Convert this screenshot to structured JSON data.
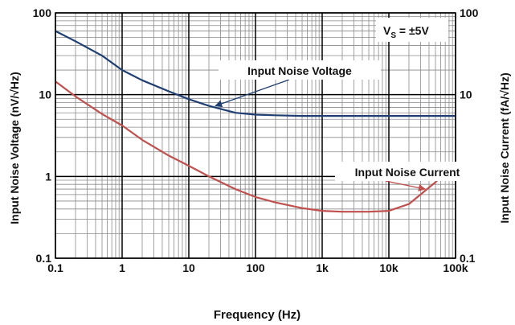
{
  "chart_data": {
    "type": "line",
    "xlabel": "Frequency (Hz)",
    "ylabel_left": "Input Noise Voltage (nV/√Hz)",
    "ylabel_right": "Input Noise Current (fA/√Hz)",
    "xscale": "log",
    "yscale": "log",
    "xlim": [
      0.1,
      100000
    ],
    "ylim": [
      0.1,
      100
    ],
    "x_ticks": [
      {
        "value": 0.1,
        "label": "0.1"
      },
      {
        "value": 1,
        "label": "1"
      },
      {
        "value": 10,
        "label": "10"
      },
      {
        "value": 100,
        "label": "100"
      },
      {
        "value": 1000,
        "label": "1k"
      },
      {
        "value": 10000,
        "label": "10k"
      },
      {
        "value": 100000,
        "label": "100k"
      }
    ],
    "y_ticks_left": [
      {
        "value": 0.1,
        "label": "0.1"
      },
      {
        "value": 1,
        "label": "1"
      },
      {
        "value": 10,
        "label": "10"
      },
      {
        "value": 100,
        "label": "100"
      }
    ],
    "y_ticks_right": [
      {
        "value": 0.1,
        "label": "0.1"
      },
      {
        "value": 1,
        "label": "1"
      },
      {
        "value": 10,
        "label": "10"
      },
      {
        "value": 100,
        "label": "100"
      }
    ],
    "grid": true,
    "condition_label": {
      "main": "V",
      "sub": "S",
      "rest": " = ±5V"
    },
    "series": [
      {
        "name": "Input Noise Voltage",
        "color": "#1f3f73",
        "x": [
          0.1,
          0.2,
          0.5,
          1,
          2,
          5,
          10,
          20,
          50,
          100,
          200,
          500,
          1000,
          2000,
          5000,
          10000,
          20000,
          50000,
          100000
        ],
        "y": [
          60,
          45,
          30,
          20,
          15,
          11,
          8.8,
          7.3,
          6.0,
          5.7,
          5.6,
          5.5,
          5.5,
          5.5,
          5.5,
          5.5,
          5.5,
          5.5,
          5.5
        ]
      },
      {
        "name": "Input Noise Current",
        "color": "#c0504d",
        "x": [
          0.1,
          0.2,
          0.5,
          1,
          2,
          5,
          10,
          20,
          50,
          100,
          200,
          500,
          1000,
          2000,
          5000,
          10000,
          20000,
          50000,
          100000
        ],
        "y": [
          14.5,
          9.5,
          5.8,
          4.2,
          2.8,
          1.8,
          1.35,
          1.0,
          0.7,
          0.56,
          0.48,
          0.41,
          0.38,
          0.37,
          0.37,
          0.38,
          0.46,
          0.85,
          1.5
        ]
      }
    ],
    "annotations": [
      {
        "text": "Input Noise Voltage",
        "series": 0,
        "arrow_to_x": 25
      },
      {
        "text": "Input Noise Current",
        "series": 1,
        "arrow_to_x": 35000
      }
    ]
  }
}
